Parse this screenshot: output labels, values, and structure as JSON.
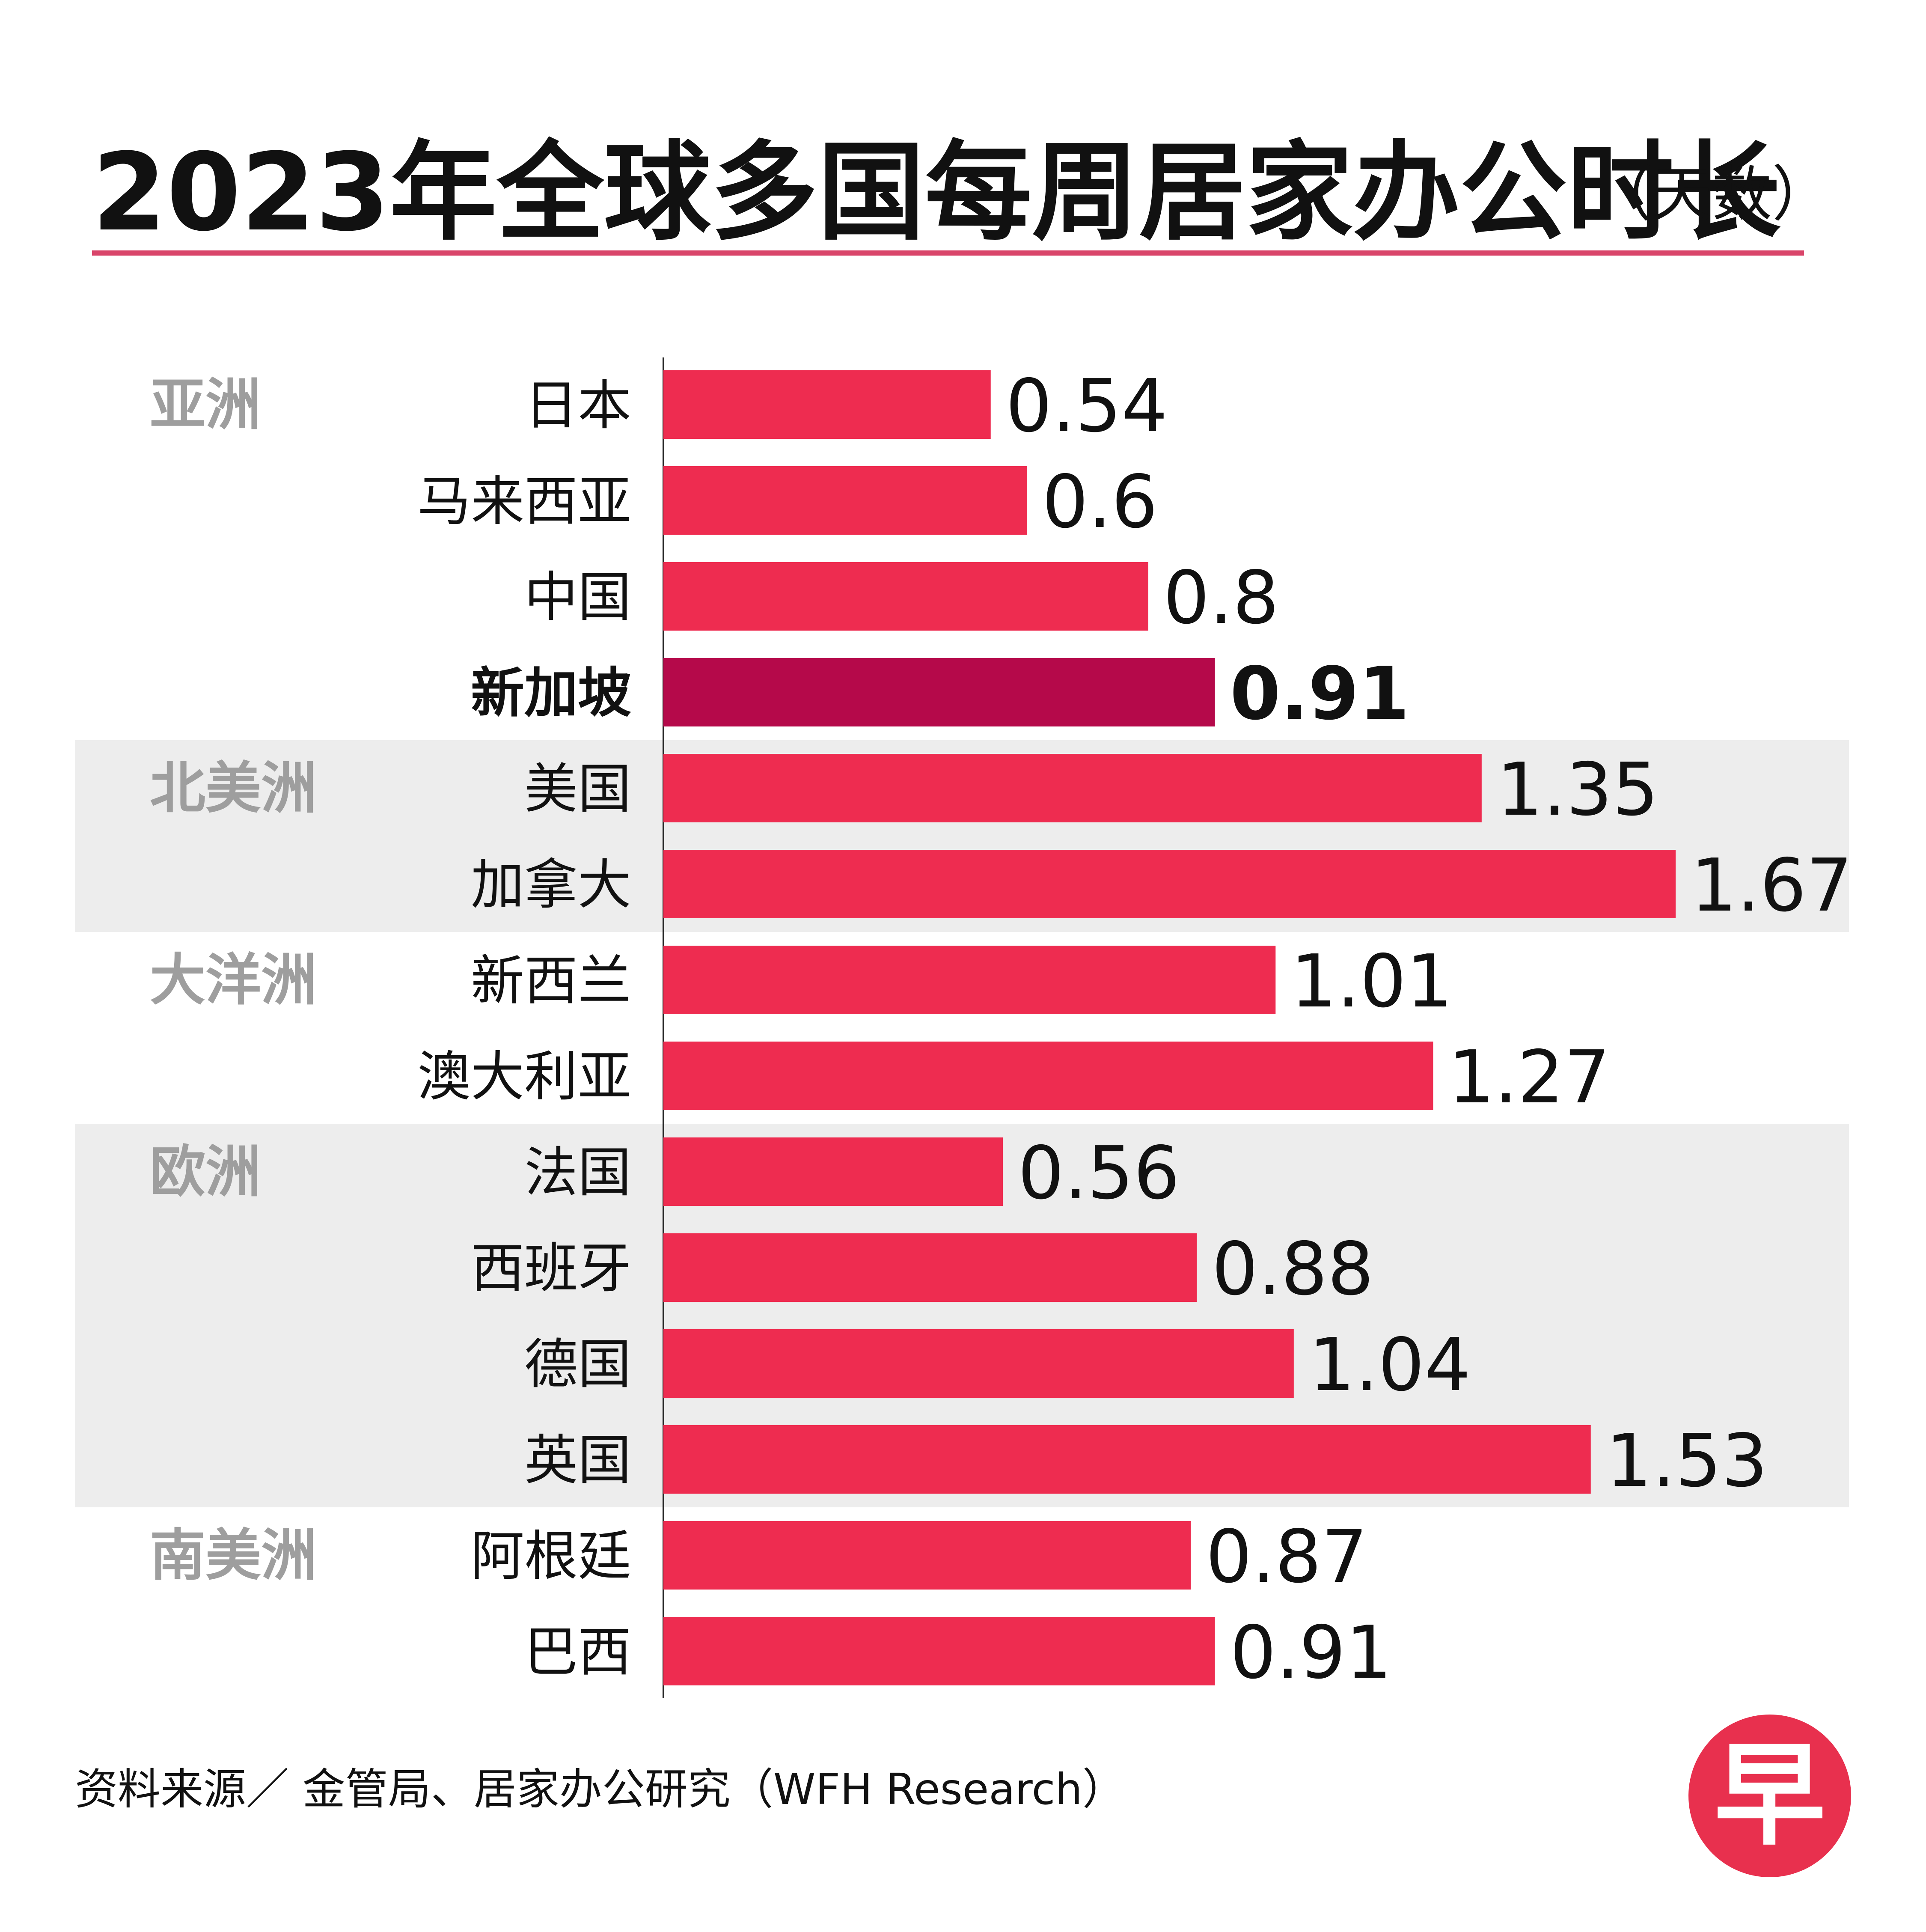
{
  "title": "2023年全球多国每周居家办公时长",
  "title_unit": "（天数）",
  "source": "资料来源／ 金管局、居家办公研究（WFH Research）",
  "logo_text": "早",
  "colors": {
    "bar": "#ee2c50",
    "highlight_bar": "#b5094a",
    "band": "#ededed",
    "region_text": "#9e9e9e",
    "title_rule": "#d9456a"
  },
  "chart_data": {
    "type": "bar",
    "orientation": "horizontal",
    "title": "2023年全球多国每周居家办公时长",
    "unit": "（天数）",
    "categories": [
      "日本",
      "马来西亚",
      "中国",
      "新加坡",
      "美国",
      "加拿大",
      "新西兰",
      "澳大利亚",
      "法国",
      "西班牙",
      "德国",
      "英国",
      "阿根廷",
      "巴西"
    ],
    "values": [
      0.54,
      0.6,
      0.8,
      0.91,
      1.35,
      1.67,
      1.01,
      1.27,
      0.56,
      0.88,
      1.04,
      1.53,
      0.87,
      0.91
    ],
    "value_labels": [
      "0.54",
      "0.6",
      "0.8",
      "0.91",
      "1.35",
      "1.67",
      "1.01",
      "1.27",
      "0.56",
      "0.88",
      "1.04",
      "1.53",
      "0.87",
      "0.91"
    ],
    "highlight": "新加坡",
    "groups": [
      {
        "name": "亚洲",
        "members": [
          "日本",
          "马来西亚",
          "中国",
          "新加坡"
        ],
        "shaded": false
      },
      {
        "name": "北美洲",
        "members": [
          "美国",
          "加拿大"
        ],
        "shaded": true
      },
      {
        "name": "大洋洲",
        "members": [
          "新西兰",
          "澳大利亚"
        ],
        "shaded": false
      },
      {
        "name": "欧洲",
        "members": [
          "法国",
          "西班牙",
          "德国",
          "英国"
        ],
        "shaded": true
      },
      {
        "name": "南美洲",
        "members": [
          "阿根廷",
          "巴西"
        ],
        "shaded": false
      }
    ],
    "xlim": [
      0,
      1.67
    ],
    "grid": false,
    "legend": "none"
  }
}
